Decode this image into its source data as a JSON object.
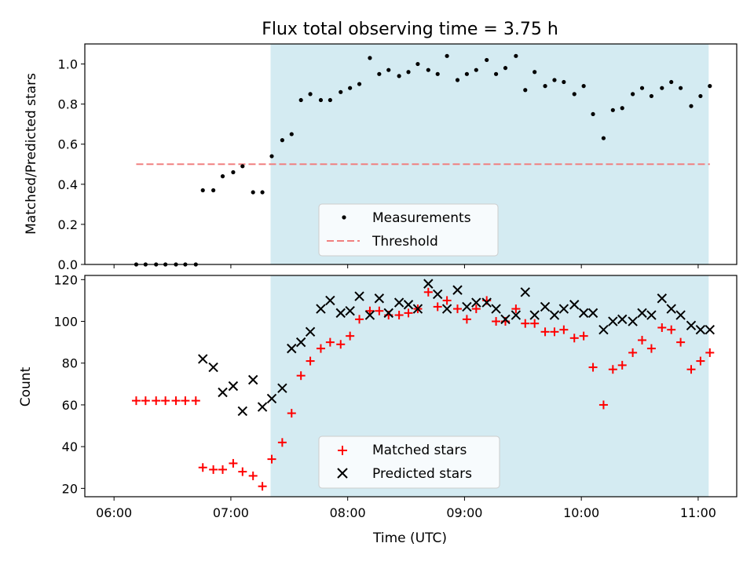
{
  "chart_data": [
    {
      "type": "scatter",
      "title": "Flux total observing time = 3.75 h",
      "ylabel": "Matched/Predicted stars",
      "xlabel": "",
      "ylim": [
        0,
        1.1
      ],
      "yticks": [
        0.0,
        0.2,
        0.4,
        0.6,
        0.8,
        1.0
      ],
      "ytick_labels": [
        "0.0",
        "0.2",
        "0.4",
        "0.6",
        "0.8",
        "1.0"
      ],
      "xlim_hours": [
        5.75,
        11.33
      ],
      "shaded_span_hours": [
        7.34,
        11.09
      ],
      "shade_color": "#d4ebf2",
      "legend_position": "lower-center",
      "series": [
        {
          "name": "Measurements",
          "marker": "dot",
          "color": "#000000",
          "x_hours": [
            6.19,
            6.27,
            6.36,
            6.44,
            6.53,
            6.61,
            6.7,
            6.76,
            6.85,
            6.93,
            7.02,
            7.1,
            7.19,
            7.27,
            7.35,
            7.44,
            7.52,
            7.6,
            7.68,
            7.77,
            7.85,
            7.94,
            8.02,
            8.1,
            8.19,
            8.27,
            8.35,
            8.44,
            8.52,
            8.6,
            8.69,
            8.77,
            8.85,
            8.94,
            9.02,
            9.1,
            9.19,
            9.27,
            9.35,
            9.44,
            9.52,
            9.6,
            9.69,
            9.77,
            9.85,
            9.94,
            10.02,
            10.1,
            10.19,
            10.27,
            10.35,
            10.44,
            10.52,
            10.6,
            10.69,
            10.77,
            10.85,
            10.94,
            11.02,
            11.1
          ],
          "y": [
            0.0,
            0.0,
            0.0,
            0.0,
            0.0,
            0.0,
            0.0,
            0.37,
            0.37,
            0.44,
            0.46,
            0.49,
            0.36,
            0.36,
            0.54,
            0.62,
            0.65,
            0.82,
            0.85,
            0.82,
            0.82,
            0.86,
            0.88,
            0.9,
            1.03,
            0.95,
            0.97,
            0.94,
            0.96,
            1.0,
            0.97,
            0.95,
            1.04,
            0.92,
            0.95,
            0.97,
            1.02,
            0.95,
            0.98,
            1.04,
            0.87,
            0.96,
            0.89,
            0.92,
            0.91,
            0.85,
            0.89,
            0.75,
            0.63,
            0.77,
            0.78,
            0.85,
            0.88,
            0.84,
            0.88,
            0.91,
            0.88,
            0.79,
            0.84,
            0.89
          ]
        },
        {
          "name": "Threshold",
          "line": "dashed",
          "color": "#f08080",
          "x_hours": [
            6.19,
            11.1
          ],
          "y": [
            0.5,
            0.5
          ]
        }
      ]
    },
    {
      "type": "scatter",
      "title": "",
      "ylabel": "Count",
      "xlabel": "Time (UTC)",
      "ylim": [
        16,
        122
      ],
      "yticks": [
        20,
        40,
        60,
        80,
        100,
        120
      ],
      "ytick_labels": [
        "20",
        "40",
        "60",
        "80",
        "100",
        "120"
      ],
      "xlim_hours": [
        5.75,
        11.33
      ],
      "xticks_hours": [
        6,
        7,
        8,
        9,
        10,
        11
      ],
      "xtick_labels": [
        "06:00",
        "07:00",
        "08:00",
        "09:00",
        "10:00",
        "11:00"
      ],
      "shaded_span_hours": [
        7.34,
        11.09
      ],
      "shade_color": "#d4ebf2",
      "legend_position": "lower-center",
      "series": [
        {
          "name": "Matched stars",
          "marker": "plus",
          "color": "#ff0000",
          "x_hours": [
            6.19,
            6.27,
            6.36,
            6.44,
            6.53,
            6.61,
            6.7,
            6.76,
            6.85,
            6.93,
            7.02,
            7.1,
            7.19,
            7.27,
            7.35,
            7.44,
            7.52,
            7.6,
            7.68,
            7.77,
            7.85,
            7.94,
            8.02,
            8.1,
            8.19,
            8.27,
            8.35,
            8.44,
            8.52,
            8.6,
            8.69,
            8.77,
            8.85,
            8.94,
            9.02,
            9.1,
            9.19,
            9.27,
            9.35,
            9.44,
            9.52,
            9.6,
            9.69,
            9.77,
            9.85,
            9.94,
            10.02,
            10.1,
            10.19,
            10.27,
            10.35,
            10.44,
            10.52,
            10.6,
            10.69,
            10.77,
            10.85,
            10.94,
            11.02,
            11.1
          ],
          "y": [
            62,
            62,
            62,
            62,
            62,
            62,
            62,
            30,
            29,
            29,
            32,
            28,
            26,
            21,
            34,
            42,
            56,
            74,
            81,
            87,
            90,
            89,
            93,
            101,
            105,
            105,
            103,
            103,
            104,
            106,
            114,
            107,
            110,
            106,
            101,
            106,
            110,
            100,
            100,
            106,
            99,
            99,
            95,
            95,
            96,
            92,
            93,
            78,
            60,
            77,
            79,
            85,
            91,
            87,
            97,
            96,
            90,
            77,
            81,
            85
          ]
        },
        {
          "name": "Predicted stars",
          "marker": "x",
          "color": "#000000",
          "x_hours": [
            6.76,
            6.85,
            6.93,
            7.02,
            7.1,
            7.19,
            7.27,
            7.35,
            7.44,
            7.52,
            7.6,
            7.68,
            7.77,
            7.85,
            7.94,
            8.02,
            8.1,
            8.19,
            8.27,
            8.35,
            8.44,
            8.52,
            8.6,
            8.69,
            8.77,
            8.85,
            8.94,
            9.02,
            9.1,
            9.19,
            9.27,
            9.35,
            9.44,
            9.52,
            9.6,
            9.69,
            9.77,
            9.85,
            9.94,
            10.02,
            10.1,
            10.19,
            10.27,
            10.35,
            10.44,
            10.52,
            10.6,
            10.69,
            10.77,
            10.85,
            10.94,
            11.02,
            11.1
          ],
          "y": [
            82,
            78,
            66,
            69,
            57,
            72,
            59,
            63,
            68,
            87,
            90,
            95,
            106,
            110,
            104,
            105,
            112,
            103,
            111,
            104,
            109,
            108,
            106,
            118,
            113,
            106,
            115,
            107,
            109,
            109,
            106,
            101,
            103,
            114,
            103,
            107,
            103,
            106,
            108,
            104,
            104,
            96,
            100,
            101,
            100,
            104,
            103,
            111,
            106,
            103,
            98,
            96,
            96
          ]
        }
      ]
    }
  ]
}
